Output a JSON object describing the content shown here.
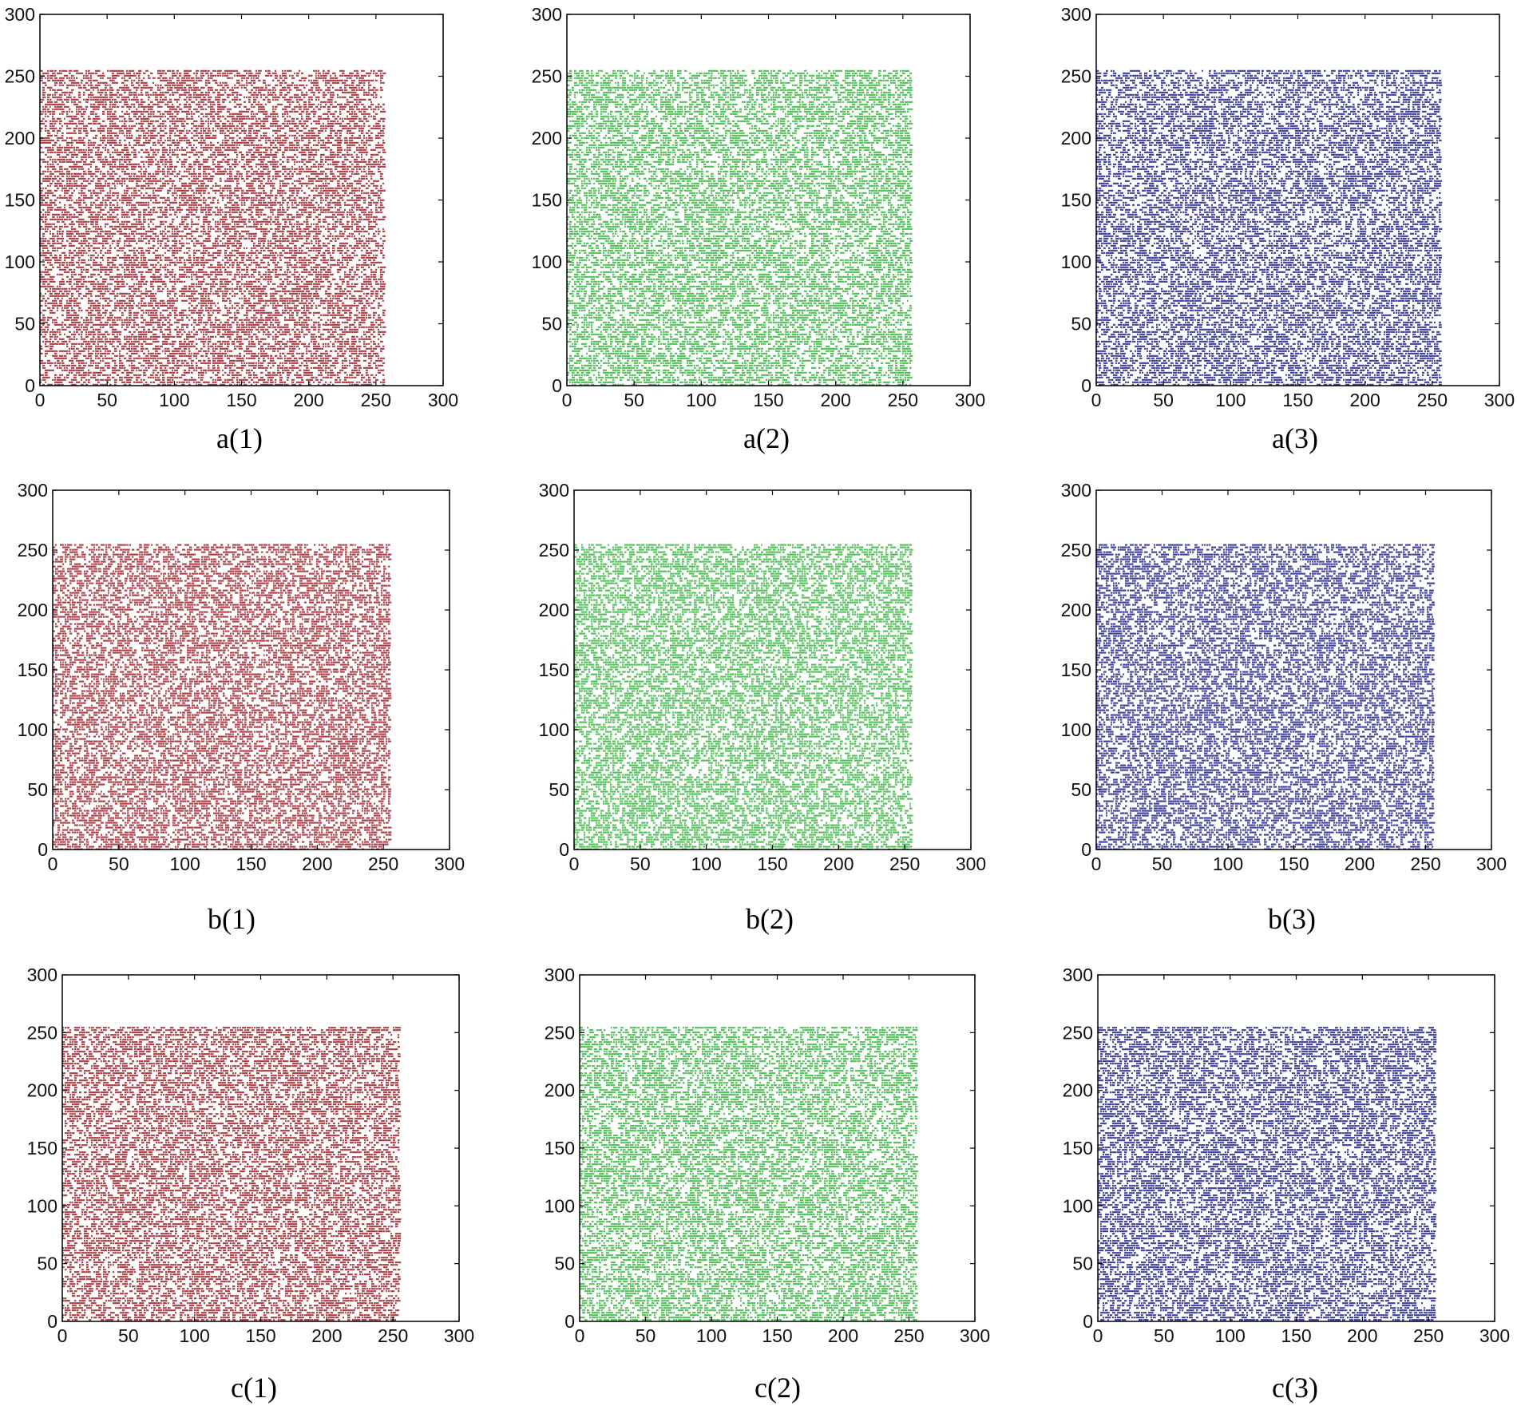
{
  "chart_data": [
    {
      "id": "a1",
      "type": "scatter",
      "caption": "a(1)",
      "color": "#a01c24",
      "xlim": [
        0,
        300
      ],
      "ylim": [
        0,
        300
      ],
      "xticks": [
        "0",
        "50",
        "100",
        "150",
        "200",
        "250",
        "300"
      ],
      "yticks": [
        "0",
        "50",
        "100",
        "150",
        "200",
        "250",
        "300"
      ],
      "points": {
        "x_range": [
          0,
          255
        ],
        "y_range": [
          0,
          255
        ],
        "distribution": "uniform",
        "density": 0.55
      }
    },
    {
      "id": "a2",
      "type": "scatter",
      "caption": "a(2)",
      "color": "#34b53c",
      "xlim": [
        0,
        300
      ],
      "ylim": [
        0,
        300
      ],
      "xticks": [
        "0",
        "50",
        "100",
        "150",
        "200",
        "250",
        "300"
      ],
      "yticks": [
        "0",
        "50",
        "100",
        "150",
        "200",
        "250",
        "300"
      ],
      "points": {
        "x_range": [
          0,
          255
        ],
        "y_range": [
          0,
          255
        ],
        "distribution": "uniform",
        "density": 0.55
      }
    },
    {
      "id": "a3",
      "type": "scatter",
      "caption": "a(3)",
      "color": "#1c1f8a",
      "xlim": [
        0,
        300
      ],
      "ylim": [
        0,
        300
      ],
      "xticks": [
        "0",
        "50",
        "100",
        "150",
        "200",
        "250",
        "300"
      ],
      "yticks": [
        "0",
        "50",
        "100",
        "150",
        "200",
        "250",
        "300"
      ],
      "points": {
        "x_range": [
          0,
          255
        ],
        "y_range": [
          0,
          255
        ],
        "distribution": "uniform",
        "density": 0.55
      }
    },
    {
      "id": "b1",
      "type": "scatter",
      "caption": "b(1)",
      "color": "#a01c24",
      "xlim": [
        0,
        300
      ],
      "ylim": [
        0,
        300
      ],
      "xticks": [
        "0",
        "50",
        "100",
        "150",
        "200",
        "250",
        "300"
      ],
      "yticks": [
        "0",
        "50",
        "100",
        "150",
        "200",
        "250",
        "300"
      ],
      "points": {
        "x_range": [
          0,
          255
        ],
        "y_range": [
          0,
          255
        ],
        "distribution": "uniform",
        "density": 0.55
      }
    },
    {
      "id": "b2",
      "type": "scatter",
      "caption": "b(2)",
      "color": "#34b53c",
      "xlim": [
        0,
        300
      ],
      "ylim": [
        0,
        300
      ],
      "xticks": [
        "0",
        "50",
        "100",
        "150",
        "200",
        "250",
        "300"
      ],
      "yticks": [
        "0",
        "50",
        "100",
        "150",
        "200",
        "250",
        "300"
      ],
      "points": {
        "x_range": [
          0,
          255
        ],
        "y_range": [
          0,
          255
        ],
        "distribution": "uniform",
        "density": 0.55
      }
    },
    {
      "id": "b3",
      "type": "scatter",
      "caption": "b(3)",
      "color": "#1c1f8a",
      "xlim": [
        0,
        300
      ],
      "ylim": [
        0,
        300
      ],
      "xticks": [
        "0",
        "50",
        "100",
        "150",
        "200",
        "250",
        "300"
      ],
      "yticks": [
        "0",
        "50",
        "100",
        "150",
        "200",
        "250",
        "300"
      ],
      "points": {
        "x_range": [
          0,
          255
        ],
        "y_range": [
          0,
          255
        ],
        "distribution": "uniform",
        "density": 0.55
      }
    },
    {
      "id": "c1",
      "type": "scatter",
      "caption": "c(1)",
      "color": "#a01c24",
      "xlim": [
        0,
        300
      ],
      "ylim": [
        0,
        300
      ],
      "xticks": [
        "0",
        "50",
        "100",
        "150",
        "200",
        "250",
        "300"
      ],
      "yticks": [
        "0",
        "50",
        "100",
        "150",
        "200",
        "250",
        "300"
      ],
      "points": {
        "x_range": [
          0,
          255
        ],
        "y_range": [
          0,
          255
        ],
        "distribution": "uniform",
        "density": 0.55
      }
    },
    {
      "id": "c2",
      "type": "scatter",
      "caption": "c(2)",
      "color": "#34b53c",
      "xlim": [
        0,
        300
      ],
      "ylim": [
        0,
        300
      ],
      "xticks": [
        "0",
        "50",
        "100",
        "150",
        "200",
        "250",
        "300"
      ],
      "yticks": [
        "0",
        "50",
        "100",
        "150",
        "200",
        "250",
        "300"
      ],
      "points": {
        "x_range": [
          0,
          255
        ],
        "y_range": [
          0,
          255
        ],
        "distribution": "uniform",
        "density": 0.55
      }
    },
    {
      "id": "c3",
      "type": "scatter",
      "caption": "c(3)",
      "color": "#1c1f8a",
      "xlim": [
        0,
        300
      ],
      "ylim": [
        0,
        300
      ],
      "xticks": [
        "0",
        "50",
        "100",
        "150",
        "200",
        "250",
        "300"
      ],
      "yticks": [
        "0",
        "50",
        "100",
        "150",
        "200",
        "250",
        "300"
      ],
      "points": {
        "x_range": [
          0,
          255
        ],
        "y_range": [
          0,
          255
        ],
        "distribution": "uniform",
        "density": 0.55
      }
    }
  ]
}
